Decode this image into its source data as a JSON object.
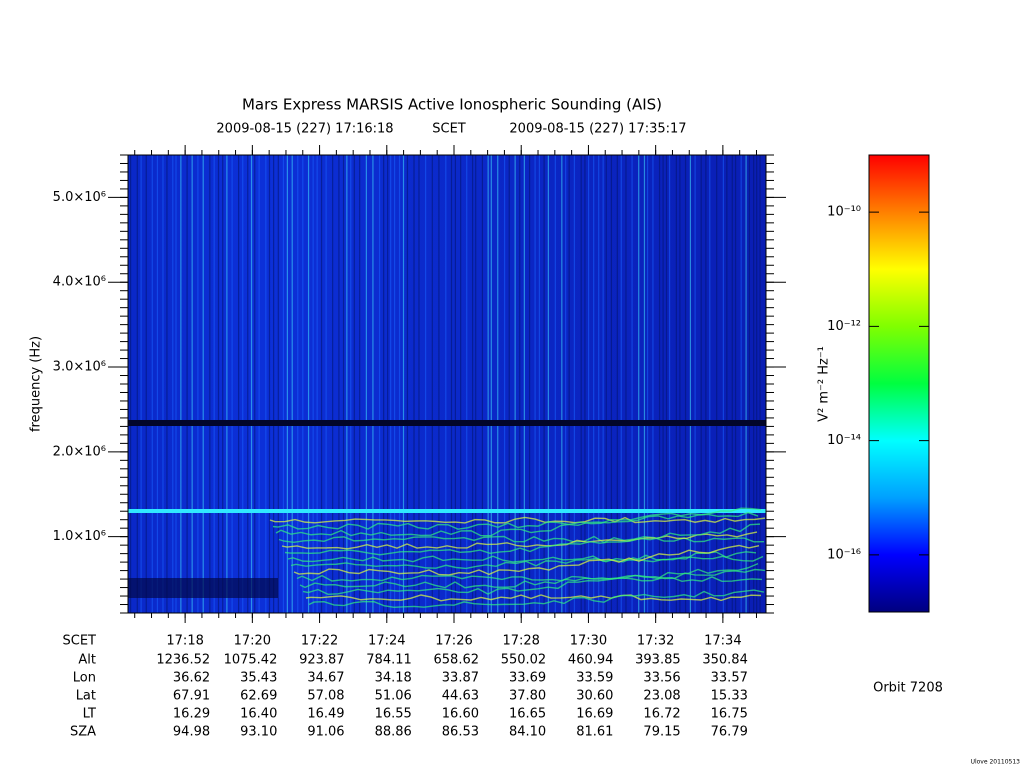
{
  "chart_data": {
    "type": "spectrogram",
    "title": "Mars Express MARSIS Active Ionospheric Sounding (AIS)",
    "start_time": "2009-08-15 (227) 17:16:18",
    "time_system": "SCET",
    "end_time": "2009-08-15 (227) 17:35:17",
    "y_label": "frequency (Hz)",
    "ylim": [
      100000,
      5500000
    ],
    "yticks": [
      {
        "value": 1000000,
        "label": "1.0×10⁶"
      },
      {
        "value": 2000000,
        "label": "2.0×10⁶"
      },
      {
        "value": 3000000,
        "label": "3.0×10⁶"
      },
      {
        "value": 4000000,
        "label": "4.0×10⁶"
      },
      {
        "value": 5000000,
        "label": "5.0×10⁶"
      }
    ],
    "xticks": [
      "17:18",
      "17:20",
      "17:22",
      "17:24",
      "17:26",
      "17:28",
      "17:30",
      "17:32",
      "17:34"
    ],
    "ephemeris": {
      "labels": [
        "SCET",
        "Alt",
        "Lon",
        "Lat",
        "LT",
        "SZA"
      ],
      "rows": [
        [
          "1236.52",
          "1075.42",
          "923.87",
          "784.11",
          "658.62",
          "550.02",
          "460.94",
          "393.85",
          "350.84"
        ],
        [
          "36.62",
          "35.43",
          "34.67",
          "34.18",
          "33.87",
          "33.69",
          "33.59",
          "33.56",
          "33.57"
        ],
        [
          "67.91",
          "62.69",
          "57.08",
          "51.06",
          "44.63",
          "37.80",
          "30.60",
          "23.08",
          "15.33"
        ],
        [
          "16.29",
          "16.40",
          "16.49",
          "16.55",
          "16.60",
          "16.65",
          "16.69",
          "16.72",
          "16.75"
        ],
        [
          "94.98",
          "93.10",
          "91.06",
          "88.86",
          "86.53",
          "84.10",
          "81.61",
          "79.15",
          "76.79"
        ]
      ]
    },
    "colorbar": {
      "label": "V² m⁻² Hz⁻¹",
      "log_scale": true,
      "clim": [
        1e-17,
        1e-09
      ],
      "ticks": [
        {
          "value": 1e-10,
          "label": "10⁻¹⁰"
        },
        {
          "value": 1e-12,
          "label": "10⁻¹²"
        },
        {
          "value": 1e-14,
          "label": "10⁻¹⁴"
        },
        {
          "value": 1e-16,
          "label": "10⁻¹⁶"
        }
      ],
      "colors": [
        "#00007f",
        "#0000ff",
        "#00a0ff",
        "#00ffff",
        "#00ff40",
        "#80ff00",
        "#ffff00",
        "#ff8000",
        "#ff0000"
      ]
    },
    "orbit": "Orbit 7208",
    "credit": "Ulove 20110513"
  }
}
